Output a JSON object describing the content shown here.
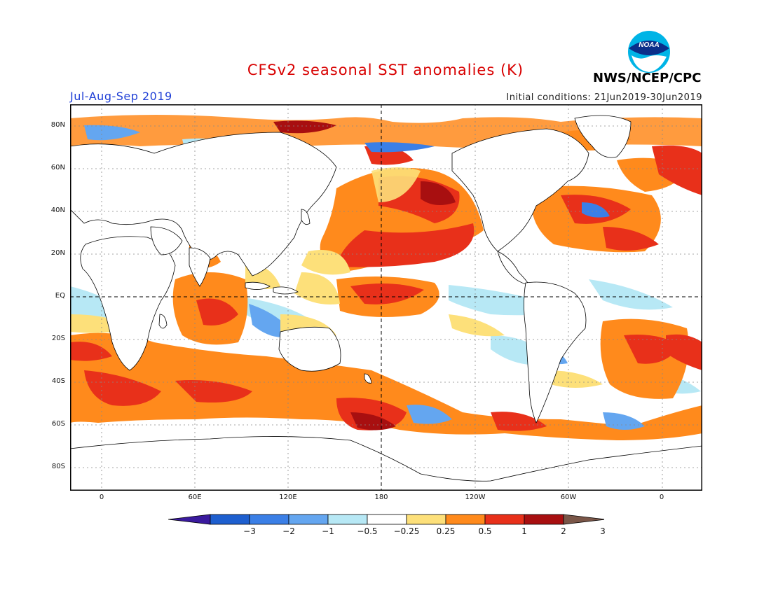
{
  "header": {
    "title": "CFSv2 seasonal SST anomalies (K)",
    "season": "Jul-Aug-Sep 2019",
    "initial_conditions": "Initial conditions: 21Jun2019-30Jun2019",
    "org": "NWS/NCEP/CPC",
    "logo_text": "NOAA"
  },
  "map": {
    "lat_labels": [
      "80N",
      "60N",
      "40N",
      "20N",
      "EQ",
      "20S",
      "40S",
      "60S",
      "80S"
    ],
    "lon_labels": [
      "0",
      "60E",
      "120E",
      "180",
      "120W",
      "60W",
      "0"
    ],
    "colors": {
      "land": "#ffffff",
      "coast": "#000000",
      "grid": "#888888"
    }
  },
  "colorbar": {
    "labels": [
      "-3",
      "-2",
      "-1",
      "-0.5",
      "-0.25",
      "0.25",
      "0.5",
      "1",
      "2",
      "3"
    ],
    "colors": [
      "#3a1a9e",
      "#1e5fcf",
      "#3b7fe6",
      "#64a6f0",
      "#b7e8f5",
      "#ffffff",
      "#fde07a",
      "#ff8a1c",
      "#e8301a",
      "#a80f10",
      "#7a5648"
    ]
  }
}
